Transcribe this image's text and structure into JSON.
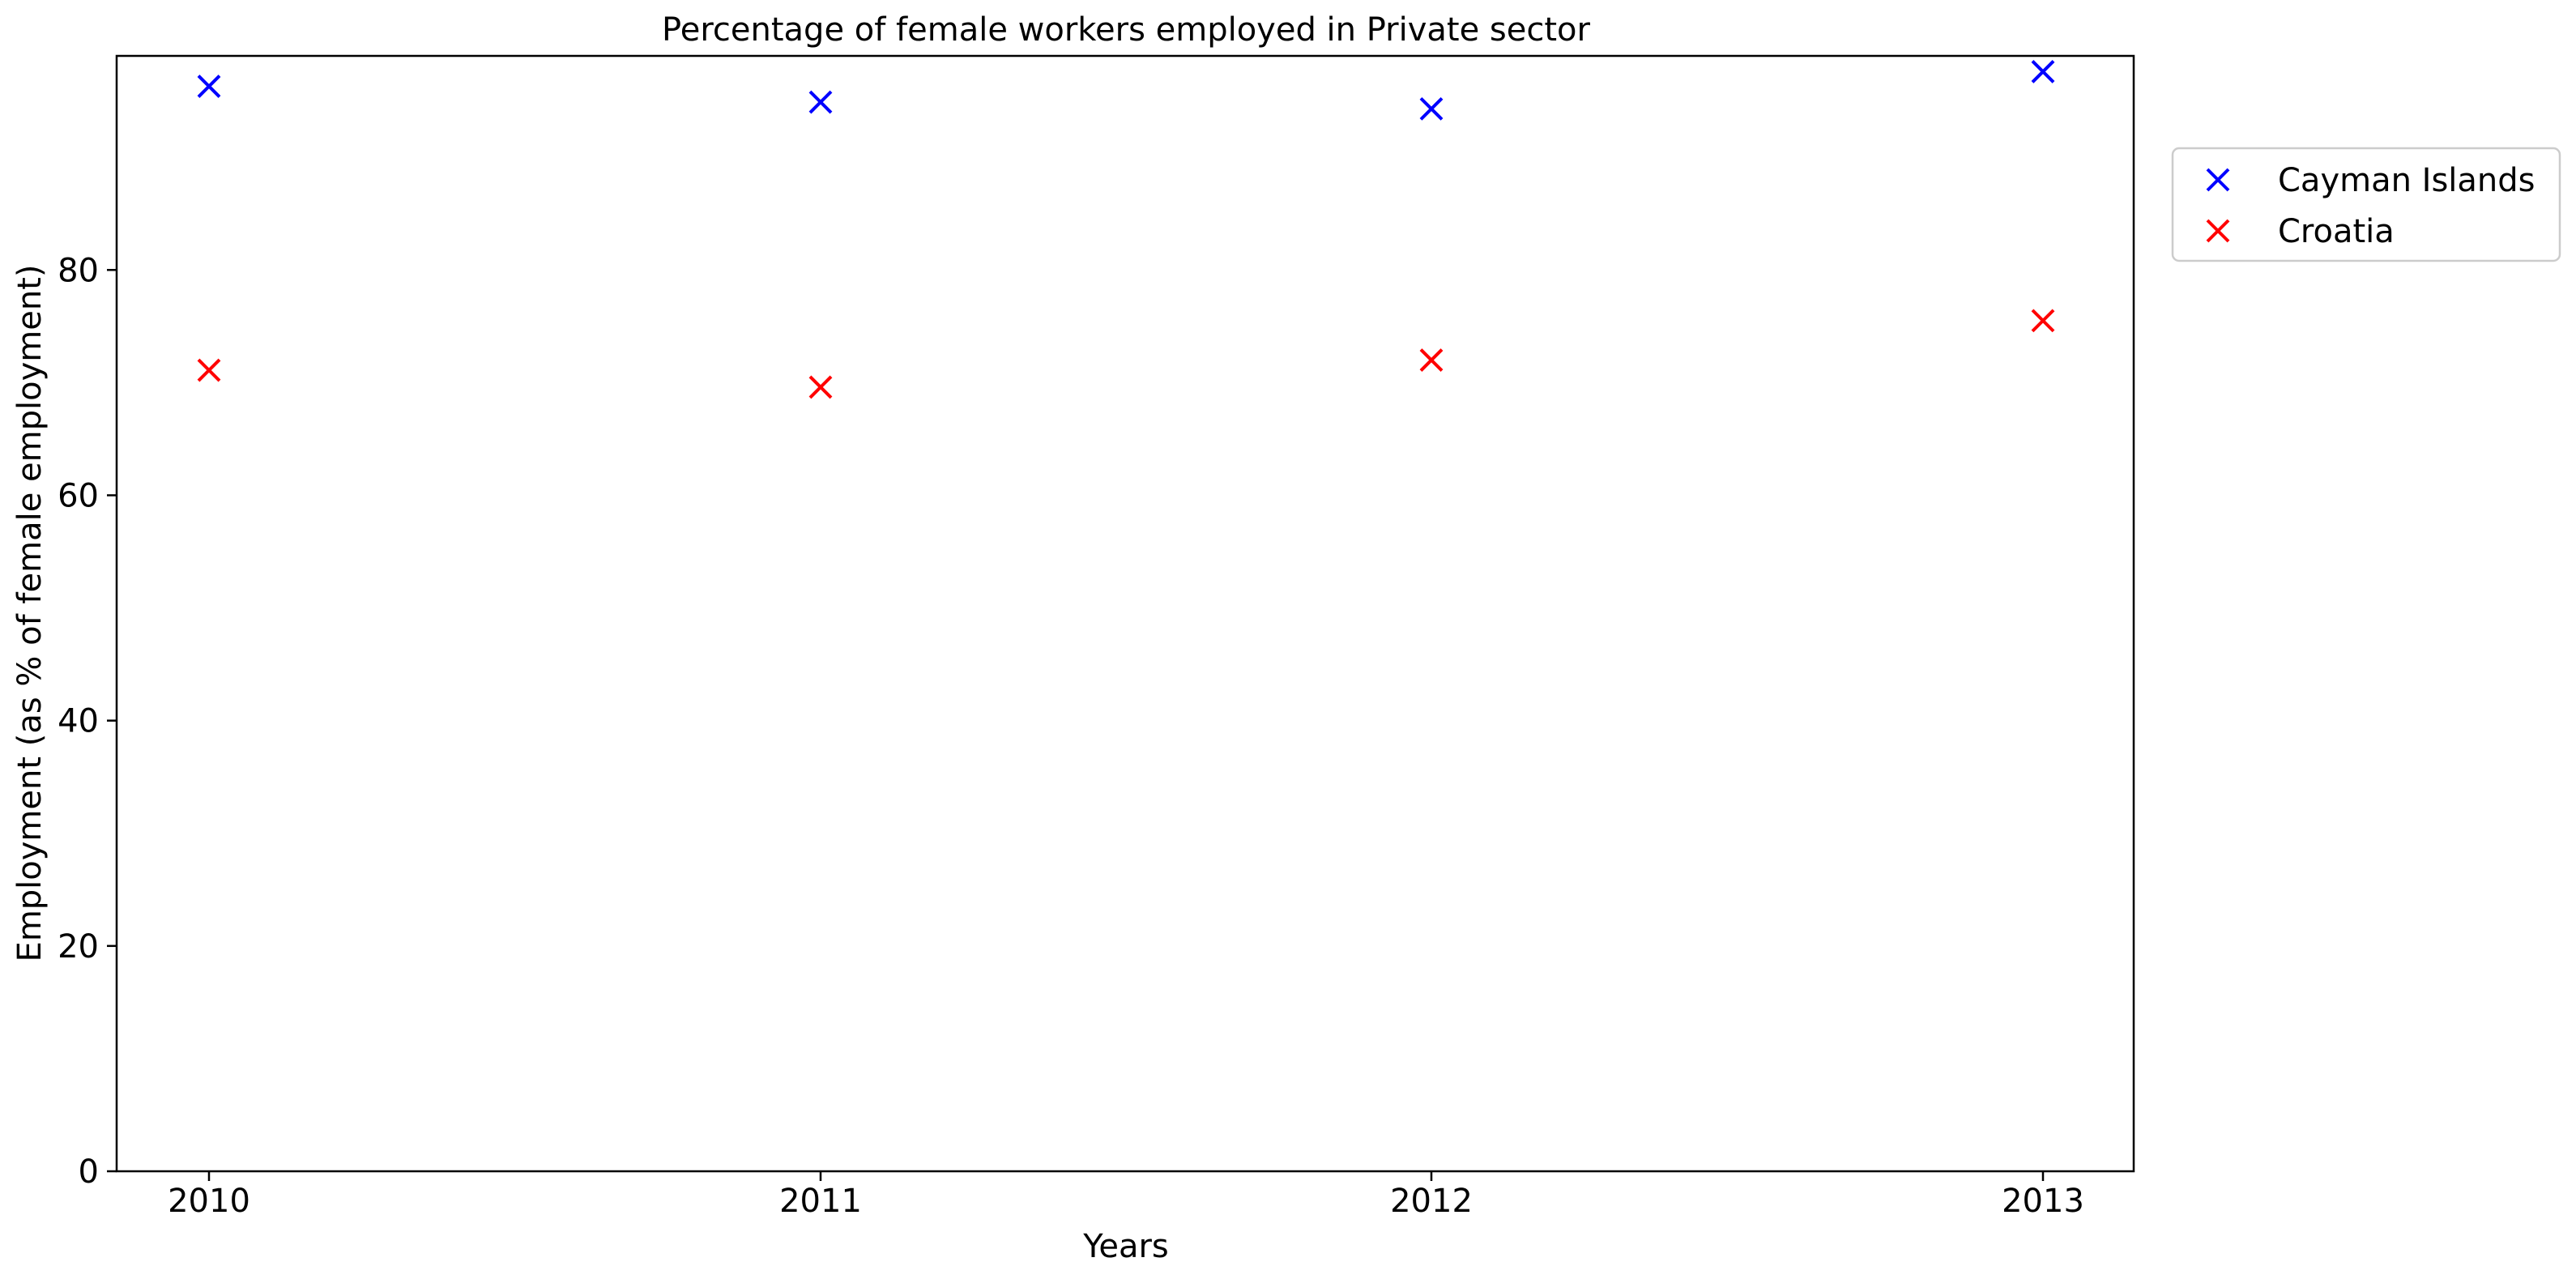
{
  "chart_data": {
    "type": "scatter",
    "title": "Percentage of female workers employed in Private sector",
    "xlabel": "Years",
    "ylabel": "Employment (as % of female employment)",
    "x": [
      "2010",
      "2011",
      "2012",
      "2013"
    ],
    "ylim": [
      0,
      99
    ],
    "yticks": [
      0,
      20,
      40,
      60,
      80
    ],
    "grid": false,
    "legend_position": "outside-top-right",
    "marker": "x",
    "series": [
      {
        "name": "Cayman Islands",
        "color": "#0000ff",
        "values": [
          96.3,
          94.9,
          94.3,
          97.6
        ]
      },
      {
        "name": "Croatia",
        "color": "#ff0000",
        "values": [
          71.1,
          69.6,
          72.0,
          75.5
        ]
      }
    ]
  }
}
